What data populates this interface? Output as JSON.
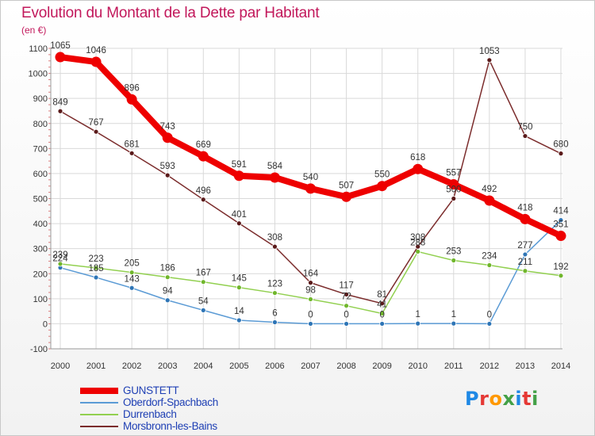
{
  "title": "Evolution du Montant de la Dette par Habitant",
  "subtitle": "(en €)",
  "brand": {
    "logo_text": "Proxiti",
    "letter_colors": [
      "#1e88e5",
      "#e53935",
      "#ff9800",
      "#43a047",
      "#1e88e5",
      "#e53935",
      "#43a047"
    ]
  },
  "colors": {
    "title": "#c2185b",
    "legend_text": "#1e3fb4"
  },
  "chart_data": {
    "type": "line",
    "x": [
      "2000",
      "2001",
      "2002",
      "2003",
      "2004",
      "2005",
      "2006",
      "2007",
      "2008",
      "2009",
      "2010",
      "2011",
      "2012",
      "2013",
      "2014"
    ],
    "ylim": [
      -100,
      1100
    ],
    "yticks": [
      -100,
      0,
      100,
      200,
      300,
      400,
      500,
      600,
      700,
      800,
      900,
      1000,
      1100
    ],
    "grid": true,
    "legend_position": "bottom-left",
    "series": [
      {
        "name": "GUNSTETT",
        "color": "#ee0000",
        "point_color": "#ee0000",
        "label_color": "#333333",
        "emphasis": true,
        "values": [
          1065,
          1046,
          896,
          743,
          669,
          591,
          584,
          540,
          507,
          550,
          618,
          557,
          492,
          418,
          351
        ],
        "labels": [
          "1065",
          "1046",
          "896",
          "743",
          "669",
          "591",
          "584",
          "540",
          "507",
          "550",
          "618",
          "557",
          "492",
          "418",
          "351"
        ]
      },
      {
        "name": "Oberdorf-Spachbach",
        "color": "#5b9bd5",
        "point_color": "#2e75b6",
        "label_color": "#333333",
        "emphasis": false,
        "values": [
          224,
          185,
          143,
          94,
          54,
          14,
          6,
          0,
          0,
          0,
          1,
          1,
          0,
          277,
          414
        ],
        "labels": [
          "224",
          "185",
          "143",
          "94",
          "54",
          "14",
          "6",
          "0",
          "0",
          "0",
          "1",
          "1",
          "0",
          "277",
          "414"
        ]
      },
      {
        "name": "Durrenbach",
        "color": "#92d050",
        "point_color": "#70b62c",
        "label_color": "#333333",
        "emphasis": false,
        "values": [
          239,
          223,
          205,
          186,
          167,
          145,
          123,
          98,
          72,
          41,
          288,
          253,
          234,
          211,
          192
        ],
        "labels": [
          "239",
          "223",
          "205",
          "186",
          "167",
          "145",
          "123",
          "98",
          "72",
          "41",
          "288",
          "253",
          "234",
          "211",
          "192"
        ]
      },
      {
        "name": "Morsbronn-les-Bains",
        "color": "#7b2c2c",
        "point_color": "#5a1a1a",
        "label_color": "#333333",
        "emphasis": false,
        "values": [
          849,
          767,
          681,
          593,
          496,
          401,
          308,
          164,
          117,
          81,
          308,
          500,
          1053,
          750,
          680
        ],
        "labels": [
          "849",
          "767",
          "681",
          "593",
          "496",
          "401",
          "308",
          "164",
          "117",
          "81",
          "308",
          "500",
          "1053",
          "750",
          "680"
        ]
      }
    ]
  }
}
